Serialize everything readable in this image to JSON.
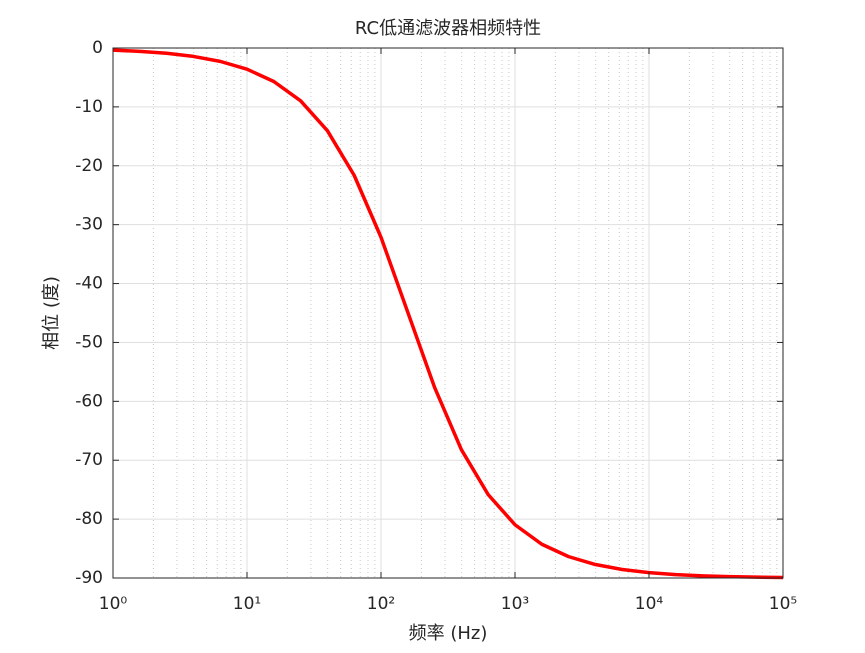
{
  "chart_data": {
    "type": "line",
    "title": "RC低通滤波器相频特性",
    "xlabel": "频率 (Hz)",
    "ylabel": "相位 (度)",
    "xscale": "log",
    "grid": true,
    "minor_grid": true,
    "xlim": [
      1,
      100000
    ],
    "ylim": [
      -90,
      0
    ],
    "xticks": [
      {
        "value": 1,
        "label": "10⁰"
      },
      {
        "value": 10,
        "label": "10¹"
      },
      {
        "value": 100,
        "label": "10²"
      },
      {
        "value": 1000,
        "label": "10³"
      },
      {
        "value": 10000,
        "label": "10⁴"
      },
      {
        "value": 100000,
        "label": "10⁵"
      }
    ],
    "yticks": [
      -90,
      -80,
      -70,
      -60,
      -50,
      -40,
      -30,
      -20,
      -10,
      0
    ],
    "series": [
      {
        "color": "#ff0000",
        "x": [
          1,
          1.585,
          2.512,
          3.981,
          6.31,
          10,
          15.85,
          25.12,
          39.81,
          63.1,
          100,
          158.5,
          251.2,
          398.1,
          631,
          1000,
          1585,
          2512,
          3981,
          6310,
          10000,
          15850,
          25120,
          39810,
          63100,
          100000
        ],
        "values": [
          -0.36,
          -0.57,
          -0.9,
          -1.43,
          -2.27,
          -3.6,
          -5.69,
          -8.97,
          -14.04,
          -21.63,
          -32.14,
          -44.88,
          -57.64,
          -68.21,
          -75.84,
          -80.96,
          -84.27,
          -86.37,
          -87.71,
          -88.56,
          -89.09,
          -89.42,
          -89.64,
          -89.77,
          -89.86,
          -89.91
        ]
      }
    ]
  }
}
